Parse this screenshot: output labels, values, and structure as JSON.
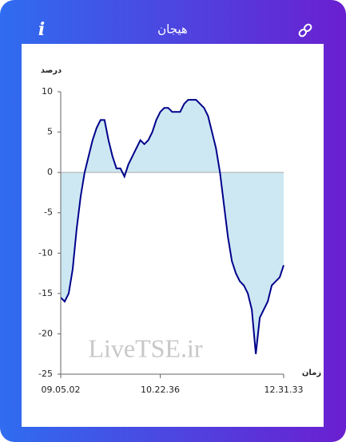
{
  "header": {
    "info_icon": "i",
    "title": "هیجان"
  },
  "chart_data": {
    "type": "area",
    "y_label": "درصد",
    "x_label": "زمان",
    "watermark": "LiveTSE.ir",
    "values": [
      -15.5,
      -16,
      -15,
      -12,
      -7,
      -3,
      0,
      2,
      4,
      5.5,
      6.5,
      6.5,
      4,
      2,
      0.5,
      0.5,
      -0.5,
      1,
      2,
      3,
      4,
      3.5,
      4,
      5,
      6.5,
      7.5,
      8,
      8,
      7.5,
      7.5,
      7.5,
      8.5,
      9,
      9,
      9,
      8.5,
      8,
      7,
      5,
      3,
      0,
      -4,
      -8,
      -11,
      -12.5,
      -13.5,
      -14,
      -15,
      -17,
      -22.5,
      -18,
      -17,
      -16,
      -14,
      -13.5,
      -13,
      -11.5
    ],
    "line_color": "#00008b",
    "fill_color": "#cde8f2",
    "xlim": [
      0,
      56
    ],
    "xticks": [
      {
        "value": 0,
        "label": "09.05.02"
      },
      {
        "value": 25,
        "label": "10.22.36"
      },
      {
        "value": 56,
        "label": "12.31.33"
      }
    ],
    "ylim": [
      -25,
      10
    ],
    "yticks": [
      10,
      5,
      0,
      -5,
      -10,
      -15,
      -20,
      -25
    ]
  }
}
